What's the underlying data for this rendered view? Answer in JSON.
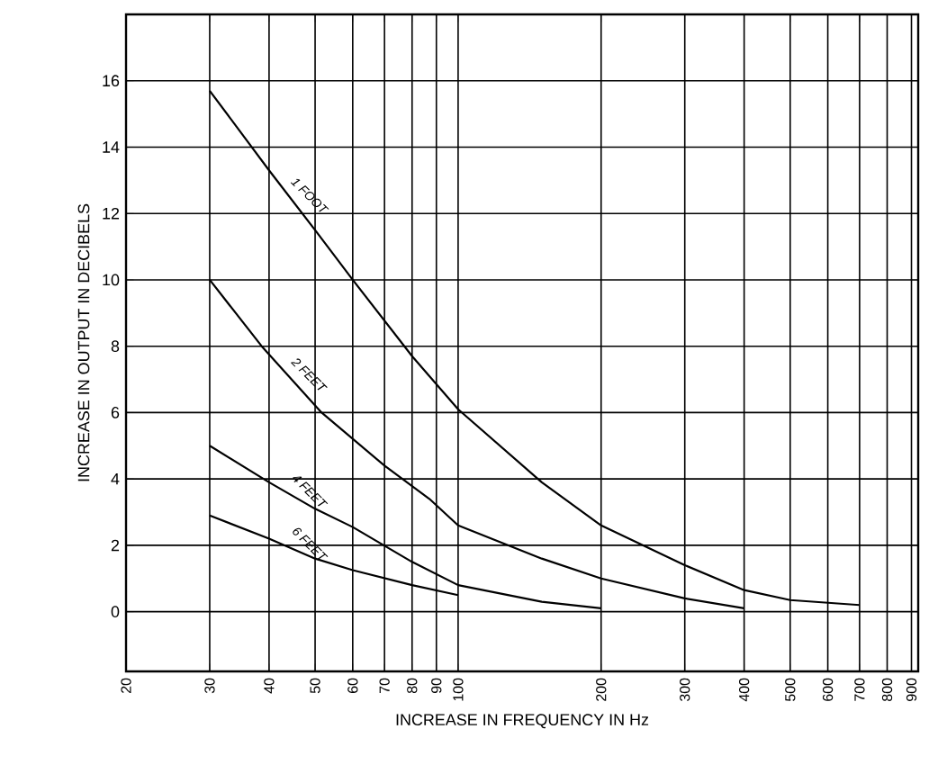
{
  "chart_data": {
    "type": "line",
    "xlabel": "INCREASE IN FREQUENCY IN Hz",
    "ylabel": "INCREASE IN OUTPUT IN DECIBELS",
    "log": "x",
    "grid": true,
    "legend": false,
    "marker": "none",
    "line_style": "solid",
    "xlim": [
      20,
      930
    ],
    "ylim": [
      -1.8,
      18
    ],
    "xticks": [
      20,
      30,
      40,
      50,
      60,
      70,
      80,
      90,
      100,
      200,
      300,
      400,
      500,
      600,
      700,
      800,
      900
    ],
    "yticks": [
      0,
      2,
      4,
      6,
      8,
      10,
      12,
      14,
      16
    ],
    "series": [
      {
        "name": "1 FOOT",
        "color": "#000000",
        "x": [
          30,
          40,
          50,
          60,
          80,
          100,
          150,
          200,
          300,
          400,
          500,
          700
        ],
        "values": [
          15.7,
          13.3,
          11.5,
          10,
          7.7,
          6.1,
          3.9,
          2.6,
          1.4,
          0.65,
          0.35,
          0.2
        ]
      },
      {
        "name": "2 FEET",
        "color": "#000000",
        "x": [
          30,
          38.6,
          51.6,
          70,
          87,
          100,
          150,
          200,
          300,
          400
        ],
        "values": [
          10,
          8,
          6,
          4.4,
          3.4,
          2.6,
          1.6,
          1.0,
          0.4,
          0.1
        ]
      },
      {
        "name": "4 FEET",
        "color": "#000000",
        "x": [
          30,
          40,
          50,
          60,
          80,
          100,
          150,
          200
        ],
        "values": [
          5,
          3.9,
          3.1,
          2.55,
          1.5,
          0.8,
          0.3,
          0.1
        ]
      },
      {
        "name": "6 FEET",
        "color": "#000000",
        "x": [
          30,
          40,
          50,
          60,
          80,
          100
        ],
        "values": [
          2.9,
          2.2,
          1.6,
          1.25,
          0.8,
          0.5
        ]
      }
    ]
  }
}
